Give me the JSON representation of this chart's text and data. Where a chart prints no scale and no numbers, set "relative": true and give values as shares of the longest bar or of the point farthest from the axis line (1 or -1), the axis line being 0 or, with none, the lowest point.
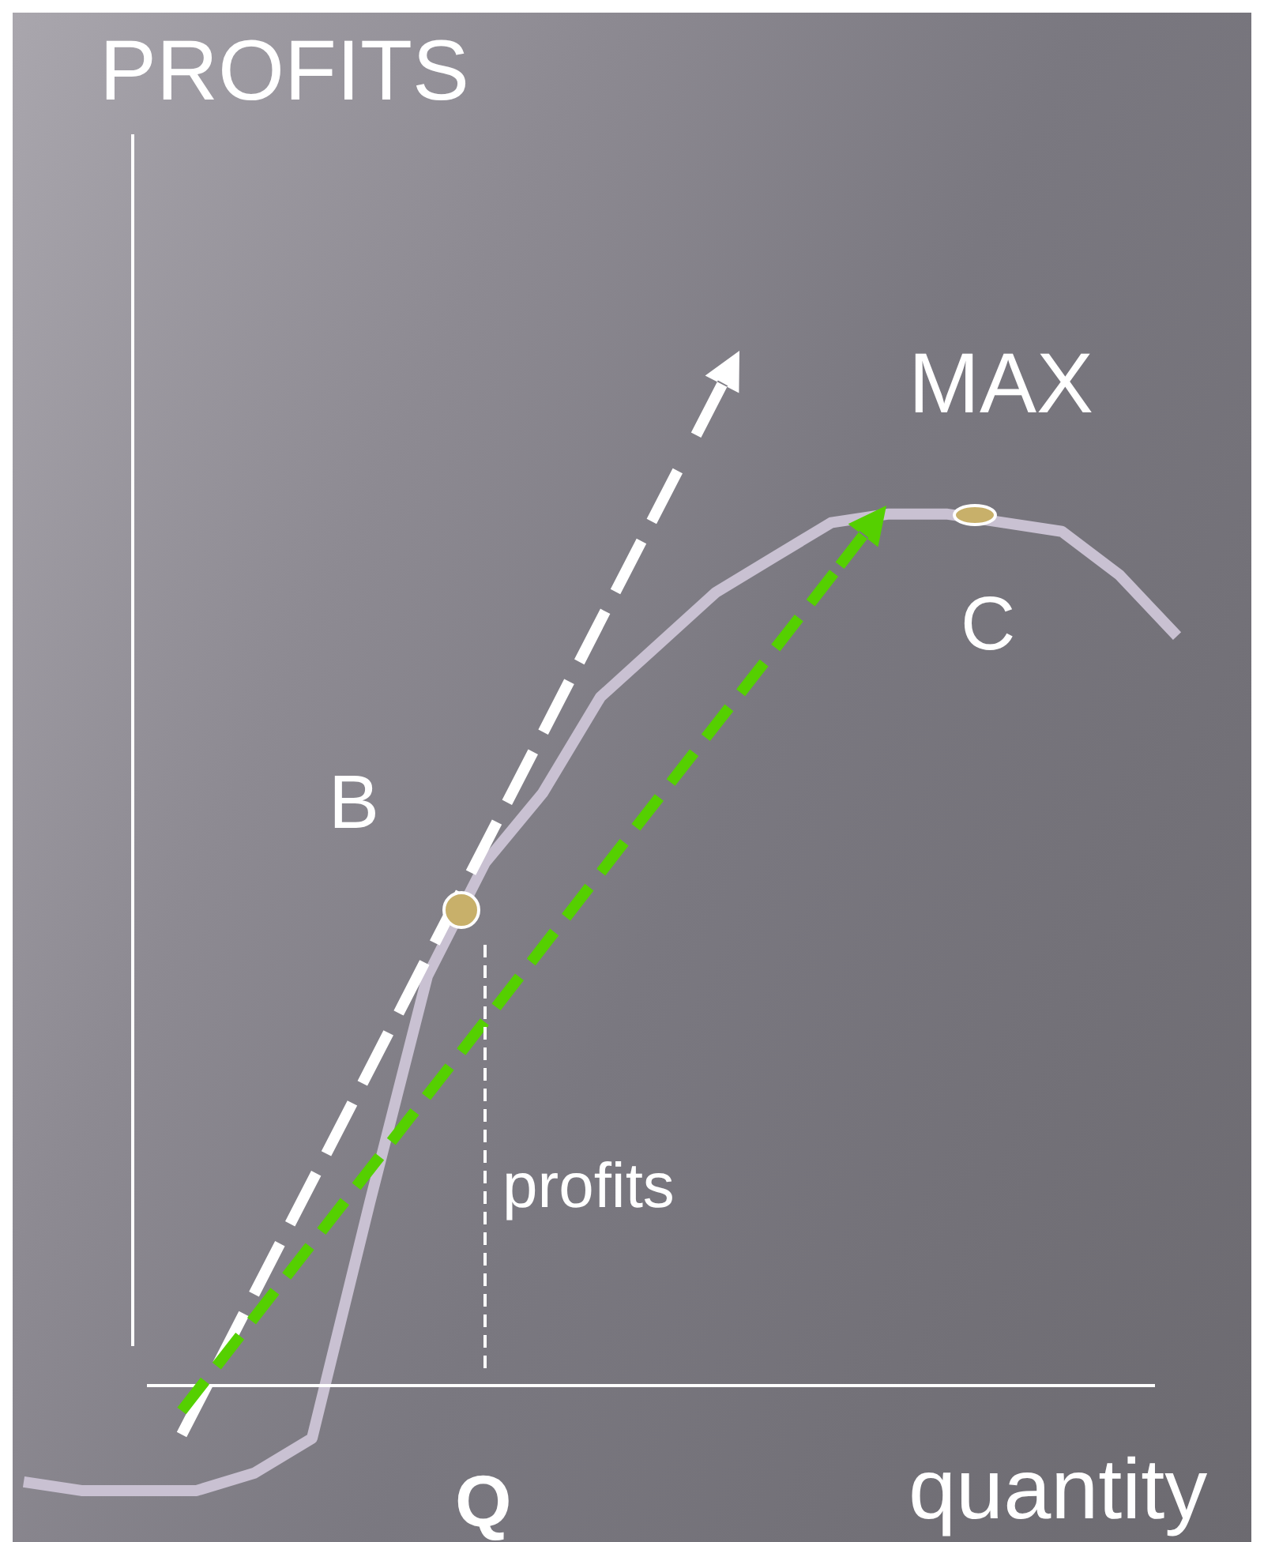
{
  "chart_data": {
    "type": "line",
    "relative": true,
    "ylabel": "PROFITS",
    "xlabel": "quantity",
    "annotations": [
      "MAX",
      "B",
      "C",
      "profits",
      "Q"
    ],
    "categories": [
      null,
      null,
      null,
      null,
      null,
      null,
      null,
      null,
      null,
      null,
      null,
      null,
      null,
      null,
      null,
      null,
      null,
      null,
      null,
      null,
      null
    ],
    "series": [
      {
        "color": "#c9c1d2",
        "values": [
          -0.11,
          -0.12,
          -0.12,
          -0.12,
          -0.1,
          -0.06,
          0.21,
          0.47,
          0.6,
          0.68,
          0.79,
          0.85,
          0.91,
          0.95,
          0.99,
          1,
          1,
          0.99,
          0.98,
          0.93,
          0.86
        ]
      }
    ],
    "grid": false,
    "legend": false,
    "marker": "none",
    "line_style": "solid"
  }
}
